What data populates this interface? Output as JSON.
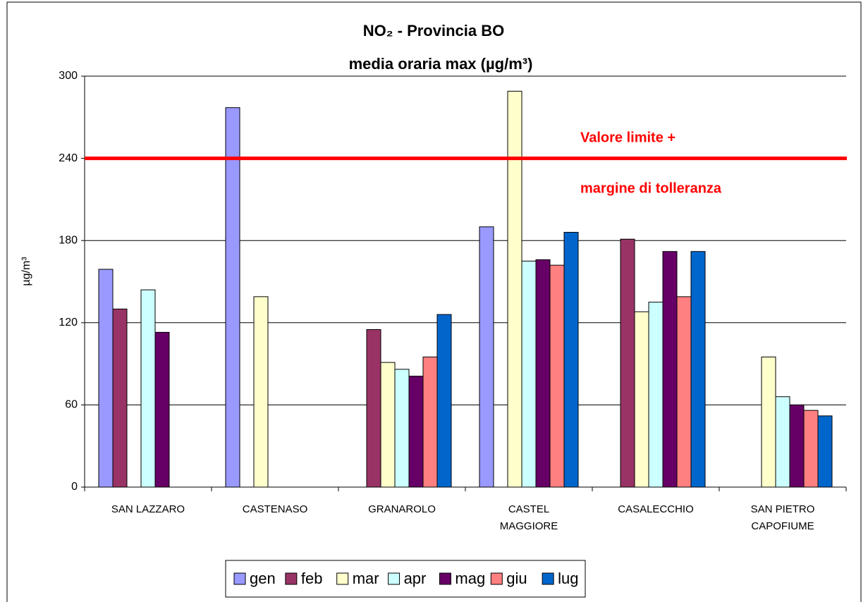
{
  "chart_data": {
    "type": "bar",
    "title": "NO₂ - Provincia BO",
    "subtitle": "media oraria max (µg/m³)",
    "y_label": "µg/m³",
    "categories": [
      "SAN LAZZARO",
      "CASTENASO",
      "GRANAROLO",
      "CASTEL\nMAGGIORE",
      "CASALECCHIO",
      "SAN PIETRO\nCAPOFIUME"
    ],
    "series": [
      {
        "name": "gen",
        "color": "#9999ff",
        "values": [
          159,
          277,
          null,
          190,
          null,
          null
        ]
      },
      {
        "name": "feb",
        "color": "#993366",
        "values": [
          130,
          null,
          115,
          null,
          181,
          null
        ]
      },
      {
        "name": "mar",
        "color": "#ffffcc",
        "values": [
          null,
          139,
          91,
          289,
          128,
          95
        ]
      },
      {
        "name": "apr",
        "color": "#ccffff",
        "values": [
          144,
          null,
          86,
          165,
          135,
          66
        ]
      },
      {
        "name": "mag",
        "color": "#660066",
        "values": [
          113,
          null,
          81,
          166,
          172,
          60
        ]
      },
      {
        "name": "giu",
        "color": "#ff8080",
        "values": [
          null,
          null,
          95,
          162,
          139,
          56
        ]
      },
      {
        "name": "lug",
        "color": "#0066cc",
        "values": [
          null,
          null,
          126,
          186,
          172,
          52
        ]
      }
    ],
    "ylim": [
      0,
      300
    ],
    "yticks": [
      0,
      60,
      120,
      180,
      240,
      300
    ],
    "grid": true,
    "reference_line": {
      "value": 240,
      "color": "#ff0000",
      "labels": [
        "Valore limite +",
        "margine di tolleranza"
      ]
    },
    "legend": "bottom"
  }
}
